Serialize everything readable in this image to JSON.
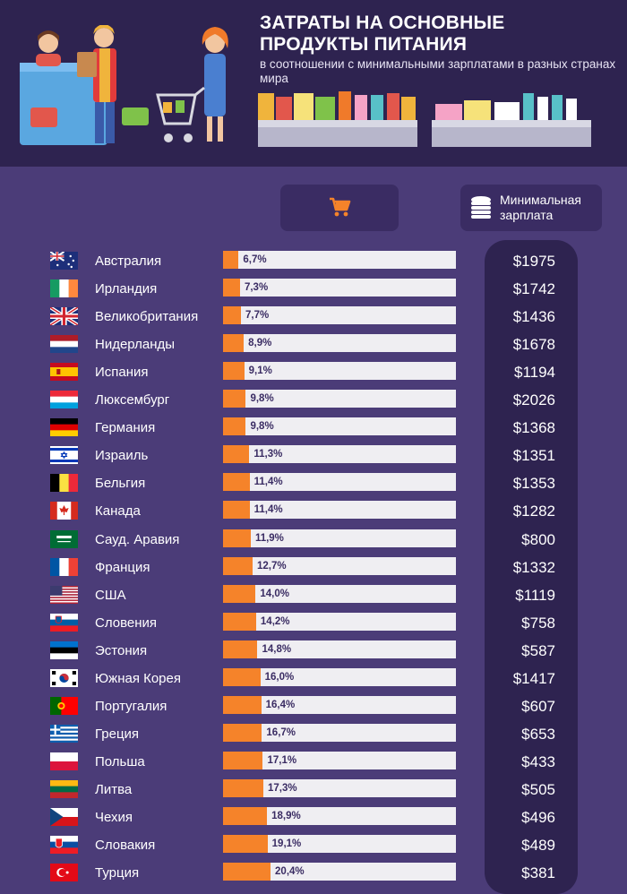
{
  "header": {
    "title": "Затраты на основные продукты питания",
    "subtitle": "в соотношении с минимальными зарплатами в разных странах мира"
  },
  "columns": {
    "cart_icon": "shopping-cart-icon",
    "wage_icon": "coins-icon",
    "wage_label": "Минимальная зарплата"
  },
  "colors": {
    "background": "#4b3c78",
    "header": "#2e2350",
    "bar": "#f5832a",
    "track": "#efeef2"
  },
  "chart_data": {
    "type": "bar",
    "orientation": "horizontal",
    "categories": [
      "Австралия",
      "Ирландия",
      "Великобритания",
      "Нидерланды",
      "Испания",
      "Люксембург",
      "Германия",
      "Израиль",
      "Бельгия",
      "Канада",
      "Сауд. Аравия",
      "Франция",
      "США",
      "Словения",
      "Эстония",
      "Южная Корея",
      "Португалия",
      "Греция",
      "Польша",
      "Литва",
      "Чехия",
      "Словакия",
      "Турция"
    ],
    "values": [
      6.7,
      7.3,
      7.7,
      8.9,
      9.1,
      9.8,
      9.8,
      11.3,
      11.4,
      11.4,
      11.9,
      12.7,
      14.0,
      14.2,
      14.8,
      16.0,
      16.4,
      16.7,
      17.1,
      17.3,
      18.9,
      19.1,
      20.4
    ],
    "value_labels": [
      "6,7%",
      "7,3%",
      "7,7%",
      "8,9%",
      "9,1%",
      "9,8%",
      "9,8%",
      "11,3%",
      "11,4%",
      "11,4%",
      "11,9%",
      "12,7%",
      "14,0%",
      "14,2%",
      "14,8%",
      "16,0%",
      "16,4%",
      "16,7%",
      "17,1%",
      "17,3%",
      "18,9%",
      "19,1%",
      "20,4%"
    ],
    "wages": [
      "$1975",
      "$1742",
      "$1436",
      "$1678",
      "$1194",
      "$2026",
      "$1368",
      "$1351",
      "$1353",
      "$1282",
      "$800",
      "$1332",
      "$1119",
      "$758",
      "$587",
      "$1417",
      "$607",
      "$653",
      "$433",
      "$505",
      "$496",
      "$489",
      "$381"
    ],
    "flags": [
      "flag-australia",
      "flag-ireland",
      "flag-uk",
      "flag-netherlands",
      "flag-spain",
      "flag-luxembourg",
      "flag-germany",
      "flag-israel",
      "flag-belgium",
      "flag-canada",
      "flag-saudi-arabia",
      "flag-france",
      "flag-usa",
      "flag-slovenia",
      "flag-estonia",
      "flag-south-korea",
      "flag-portugal",
      "flag-greece",
      "flag-poland",
      "flag-lithuania",
      "flag-czechia",
      "flag-slovakia",
      "flag-turkey"
    ],
    "xlim": [
      0,
      100
    ],
    "title": "",
    "xlabel": "",
    "ylabel": ""
  }
}
